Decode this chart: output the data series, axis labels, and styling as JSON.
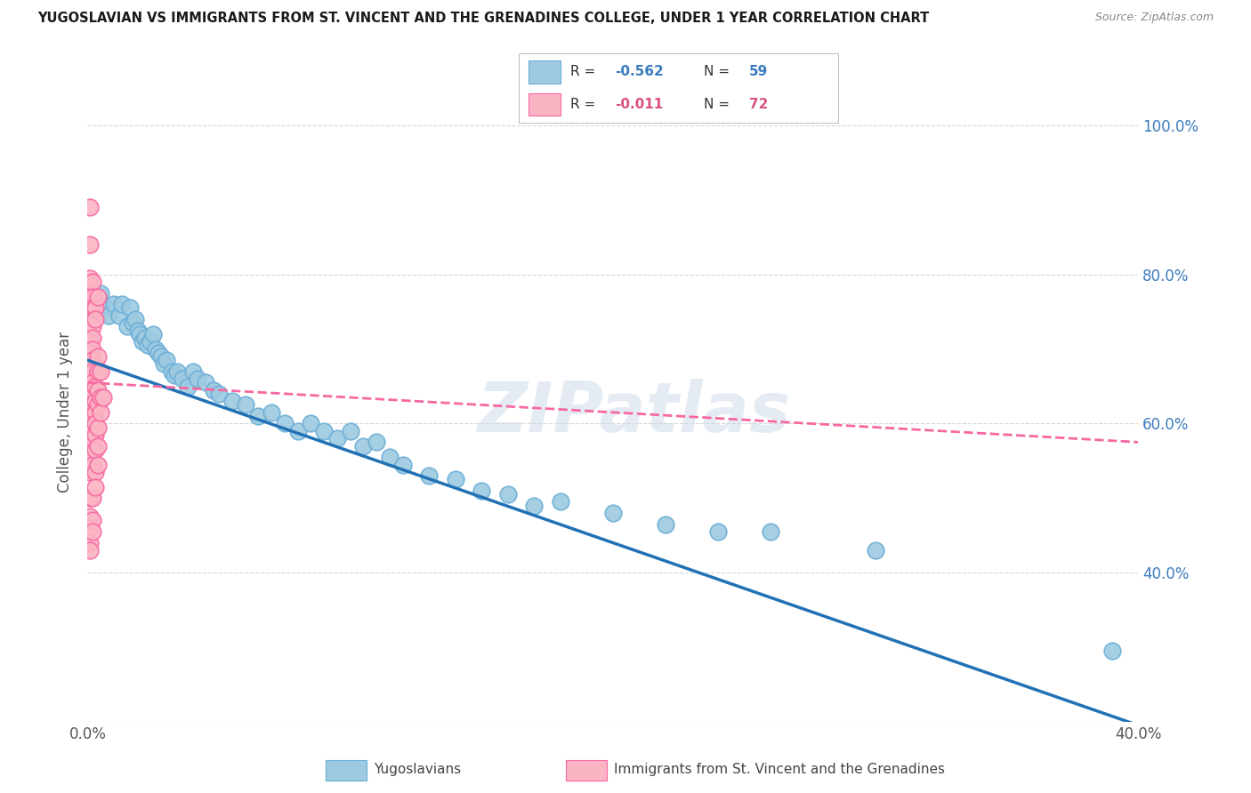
{
  "title": "YUGOSLAVIAN VS IMMIGRANTS FROM ST. VINCENT AND THE GRENADINES COLLEGE, UNDER 1 YEAR CORRELATION CHART",
  "source": "Source: ZipAtlas.com",
  "ylabel": "College, Under 1 year",
  "xlim": [
    0.0,
    0.4
  ],
  "ylim": [
    0.2,
    1.03
  ],
  "x_ticks": [
    0.0,
    0.05,
    0.1,
    0.15,
    0.2,
    0.25,
    0.3,
    0.35,
    0.4
  ],
  "x_tick_labels": [
    "0.0%",
    "",
    "",
    "",
    "",
    "",
    "",
    "",
    "40.0%"
  ],
  "y_ticks": [
    0.2,
    0.4,
    0.6,
    0.8,
    1.0
  ],
  "y_tick_labels_right": [
    "",
    "40.0%",
    "60.0%",
    "80.0%",
    "100.0%"
  ],
  "watermark": "ZIPatlas",
  "blue_scatter": [
    [
      0.003,
      0.755
    ],
    [
      0.005,
      0.775
    ],
    [
      0.007,
      0.755
    ],
    [
      0.008,
      0.745
    ],
    [
      0.01,
      0.76
    ],
    [
      0.012,
      0.745
    ],
    [
      0.013,
      0.76
    ],
    [
      0.015,
      0.73
    ],
    [
      0.016,
      0.755
    ],
    [
      0.017,
      0.735
    ],
    [
      0.018,
      0.74
    ],
    [
      0.019,
      0.725
    ],
    [
      0.02,
      0.72
    ],
    [
      0.021,
      0.71
    ],
    [
      0.022,
      0.715
    ],
    [
      0.023,
      0.705
    ],
    [
      0.024,
      0.71
    ],
    [
      0.025,
      0.72
    ],
    [
      0.026,
      0.7
    ],
    [
      0.027,
      0.695
    ],
    [
      0.028,
      0.69
    ],
    [
      0.029,
      0.68
    ],
    [
      0.03,
      0.685
    ],
    [
      0.032,
      0.67
    ],
    [
      0.033,
      0.665
    ],
    [
      0.034,
      0.67
    ],
    [
      0.036,
      0.66
    ],
    [
      0.038,
      0.65
    ],
    [
      0.04,
      0.67
    ],
    [
      0.042,
      0.66
    ],
    [
      0.045,
      0.655
    ],
    [
      0.048,
      0.645
    ],
    [
      0.05,
      0.64
    ],
    [
      0.055,
      0.63
    ],
    [
      0.06,
      0.625
    ],
    [
      0.065,
      0.61
    ],
    [
      0.07,
      0.615
    ],
    [
      0.075,
      0.6
    ],
    [
      0.08,
      0.59
    ],
    [
      0.085,
      0.6
    ],
    [
      0.09,
      0.59
    ],
    [
      0.095,
      0.58
    ],
    [
      0.1,
      0.59
    ],
    [
      0.105,
      0.57
    ],
    [
      0.11,
      0.575
    ],
    [
      0.115,
      0.555
    ],
    [
      0.12,
      0.545
    ],
    [
      0.13,
      0.53
    ],
    [
      0.14,
      0.525
    ],
    [
      0.15,
      0.51
    ],
    [
      0.16,
      0.505
    ],
    [
      0.17,
      0.49
    ],
    [
      0.18,
      0.495
    ],
    [
      0.2,
      0.48
    ],
    [
      0.22,
      0.465
    ],
    [
      0.24,
      0.455
    ],
    [
      0.26,
      0.455
    ],
    [
      0.3,
      0.43
    ],
    [
      0.39,
      0.295
    ]
  ],
  "pink_scatter": [
    [
      0.001,
      0.89
    ],
    [
      0.001,
      0.84
    ],
    [
      0.001,
      0.795
    ],
    [
      0.001,
      0.775
    ],
    [
      0.001,
      0.765
    ],
    [
      0.001,
      0.755
    ],
    [
      0.001,
      0.745
    ],
    [
      0.001,
      0.735
    ],
    [
      0.001,
      0.72
    ],
    [
      0.001,
      0.71
    ],
    [
      0.001,
      0.7
    ],
    [
      0.001,
      0.695
    ],
    [
      0.001,
      0.685
    ],
    [
      0.001,
      0.675
    ],
    [
      0.001,
      0.665
    ],
    [
      0.001,
      0.655
    ],
    [
      0.001,
      0.645
    ],
    [
      0.001,
      0.635
    ],
    [
      0.001,
      0.625
    ],
    [
      0.001,
      0.615
    ],
    [
      0.001,
      0.605
    ],
    [
      0.001,
      0.595
    ],
    [
      0.001,
      0.585
    ],
    [
      0.001,
      0.545
    ],
    [
      0.001,
      0.535
    ],
    [
      0.001,
      0.5
    ],
    [
      0.001,
      0.475
    ],
    [
      0.001,
      0.46
    ],
    [
      0.001,
      0.44
    ],
    [
      0.001,
      0.43
    ],
    [
      0.002,
      0.79
    ],
    [
      0.002,
      0.77
    ],
    [
      0.002,
      0.755
    ],
    [
      0.002,
      0.74
    ],
    [
      0.002,
      0.73
    ],
    [
      0.002,
      0.715
    ],
    [
      0.002,
      0.7
    ],
    [
      0.002,
      0.685
    ],
    [
      0.002,
      0.67
    ],
    [
      0.002,
      0.655
    ],
    [
      0.002,
      0.64
    ],
    [
      0.002,
      0.625
    ],
    [
      0.002,
      0.61
    ],
    [
      0.002,
      0.595
    ],
    [
      0.002,
      0.58
    ],
    [
      0.002,
      0.56
    ],
    [
      0.002,
      0.545
    ],
    [
      0.002,
      0.5
    ],
    [
      0.002,
      0.47
    ],
    [
      0.002,
      0.455
    ],
    [
      0.003,
      0.755
    ],
    [
      0.003,
      0.74
    ],
    [
      0.003,
      0.65
    ],
    [
      0.003,
      0.63
    ],
    [
      0.003,
      0.615
    ],
    [
      0.003,
      0.6
    ],
    [
      0.003,
      0.585
    ],
    [
      0.003,
      0.565
    ],
    [
      0.003,
      0.535
    ],
    [
      0.003,
      0.515
    ],
    [
      0.004,
      0.77
    ],
    [
      0.004,
      0.69
    ],
    [
      0.004,
      0.67
    ],
    [
      0.004,
      0.645
    ],
    [
      0.004,
      0.625
    ],
    [
      0.004,
      0.595
    ],
    [
      0.004,
      0.57
    ],
    [
      0.004,
      0.545
    ],
    [
      0.005,
      0.67
    ],
    [
      0.005,
      0.635
    ],
    [
      0.005,
      0.615
    ],
    [
      0.006,
      0.635
    ]
  ],
  "blue_line": {
    "x0": 0.0,
    "y0": 0.685,
    "x1": 0.4,
    "y1": 0.195
  },
  "pink_line": {
    "x0": 0.0,
    "y0": 0.655,
    "x1": 0.4,
    "y1": 0.575
  },
  "blue_line_color": "#2171b5",
  "pink_line_color": "#f768a1",
  "blue_dot_color": "#9ecae1",
  "blue_dot_edge": "#6baed6",
  "pink_dot_color": "#fbb4c4",
  "pink_dot_edge": "#f768a1",
  "grid_color": "#cccccc",
  "background_color": "#ffffff",
  "legend_blue_R": "-0.562",
  "legend_blue_N": "59",
  "legend_pink_R": "-0.011",
  "legend_pink_N": "72",
  "legend_text_blue": "#3a7abf",
  "legend_text_pink": "#d9527a",
  "legend_text_black": "#333333"
}
